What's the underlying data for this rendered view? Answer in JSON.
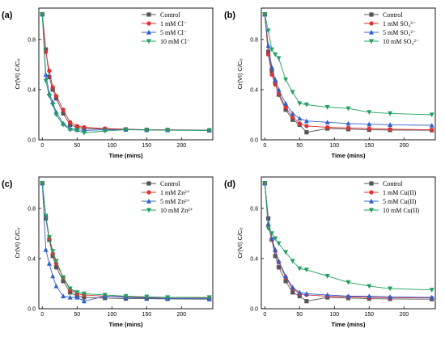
{
  "chart_data": [
    {
      "type": "line",
      "panel_label": "(a)",
      "xlabel": "Time (mins)",
      "ylabel": "Cr(VI) C/C₀",
      "xlim": [
        -5,
        245
      ],
      "ylim": [
        0,
        1.05
      ],
      "xticks": [
        0,
        50,
        100,
        150,
        200
      ],
      "yticks": [
        0.0,
        0.4,
        0.8
      ],
      "legend_position": "top-right",
      "x": [
        0,
        5,
        10,
        15,
        20,
        30,
        40,
        50,
        60,
        90,
        120,
        150,
        180,
        240
      ],
      "series": [
        {
          "name": "Control",
          "color": "#555555",
          "marker": "square",
          "values": [
            1.0,
            0.72,
            0.5,
            0.4,
            0.33,
            0.21,
            0.12,
            0.1,
            0.09,
            0.085,
            0.083,
            0.08,
            0.078,
            0.076
          ]
        },
        {
          "name": "1 mM Cl⁻",
          "color": "#e03030",
          "marker": "circle",
          "values": [
            1.0,
            0.7,
            0.55,
            0.42,
            0.35,
            0.24,
            0.14,
            0.11,
            0.1,
            0.09,
            0.085,
            0.08,
            0.08,
            0.077
          ]
        },
        {
          "name": "5 mM Cl⁻",
          "color": "#3060d0",
          "marker": "triangle-up",
          "values": [
            1.0,
            0.52,
            0.37,
            0.3,
            0.22,
            0.13,
            0.09,
            0.08,
            0.075,
            0.08,
            0.082,
            0.079,
            0.078,
            0.076
          ]
        },
        {
          "name": "10 mM Cl⁻",
          "color": "#20a060",
          "marker": "triangle-down",
          "values": [
            1.0,
            0.47,
            0.35,
            0.28,
            0.2,
            0.12,
            0.08,
            0.075,
            0.055,
            0.07,
            0.08,
            0.078,
            0.076,
            0.075
          ]
        }
      ]
    },
    {
      "type": "line",
      "panel_label": "(b)",
      "xlabel": "Time (mins)",
      "ylabel": "Cr(VI) C/C₀",
      "xlim": [
        -5,
        245
      ],
      "ylim": [
        0,
        1.05
      ],
      "xticks": [
        0,
        50,
        100,
        150,
        200
      ],
      "yticks": [
        0.0,
        0.4,
        0.8
      ],
      "legend_position": "top-right",
      "x": [
        0,
        5,
        10,
        15,
        20,
        30,
        40,
        50,
        60,
        90,
        120,
        150,
        180,
        240
      ],
      "series": [
        {
          "name": "Control",
          "color": "#555555",
          "marker": "square",
          "values": [
            1.0,
            0.7,
            0.55,
            0.45,
            0.36,
            0.24,
            0.16,
            0.12,
            0.06,
            0.09,
            0.085,
            0.08,
            0.078,
            0.076
          ]
        },
        {
          "name": "1 mM SO₄²⁻",
          "color": "#e03030",
          "marker": "circle",
          "values": [
            1.0,
            0.68,
            0.52,
            0.44,
            0.37,
            0.26,
            0.18,
            0.13,
            0.11,
            0.1,
            0.095,
            0.09,
            0.085,
            0.08
          ]
        },
        {
          "name": "5 mM SO₄²⁻",
          "color": "#3060d0",
          "marker": "triangle-up",
          "values": [
            1.0,
            0.75,
            0.58,
            0.48,
            0.4,
            0.29,
            0.21,
            0.17,
            0.15,
            0.14,
            0.13,
            0.125,
            0.12,
            0.115
          ]
        },
        {
          "name": "10 mM SO₄²⁻",
          "color": "#20a060",
          "marker": "triangle-down",
          "values": [
            1.0,
            0.87,
            0.72,
            0.68,
            0.65,
            0.48,
            0.38,
            0.29,
            0.28,
            0.26,
            0.25,
            0.22,
            0.21,
            0.2
          ]
        }
      ]
    },
    {
      "type": "line",
      "panel_label": "(c)",
      "xlabel": "Time (mins)",
      "ylabel": "Cr(VI) C/C₀",
      "xlim": [
        -5,
        245
      ],
      "ylim": [
        0,
        1.05
      ],
      "xticks": [
        0,
        50,
        100,
        150,
        200
      ],
      "yticks": [
        0.0,
        0.4,
        0.8
      ],
      "legend_position": "top-right",
      "x": [
        0,
        5,
        10,
        15,
        20,
        30,
        40,
        50,
        60,
        90,
        120,
        150,
        180,
        240
      ],
      "series": [
        {
          "name": "Control",
          "color": "#555555",
          "marker": "square",
          "values": [
            1.0,
            0.72,
            0.55,
            0.42,
            0.33,
            0.22,
            0.13,
            0.1,
            0.09,
            0.085,
            0.08,
            0.08,
            0.078,
            0.076
          ]
        },
        {
          "name": "1 mM Zn²⁺",
          "color": "#e03030",
          "marker": "circle",
          "values": [
            1.0,
            0.74,
            0.56,
            0.44,
            0.36,
            0.25,
            0.15,
            0.12,
            0.11,
            0.1,
            0.095,
            0.09,
            0.088,
            0.086
          ]
        },
        {
          "name": "5 mM Zn²⁺",
          "color": "#3060d0",
          "marker": "triangle-up",
          "values": [
            1.0,
            0.47,
            0.36,
            0.26,
            0.18,
            0.1,
            0.09,
            0.09,
            0.06,
            0.1,
            0.09,
            0.085,
            0.082,
            0.08
          ]
        },
        {
          "name": "10 mM Zn²⁺",
          "color": "#20a060",
          "marker": "triangle-down",
          "values": [
            1.0,
            0.74,
            0.57,
            0.46,
            0.38,
            0.25,
            0.16,
            0.13,
            0.12,
            0.11,
            0.1,
            0.095,
            0.09,
            0.09
          ]
        }
      ]
    },
    {
      "type": "line",
      "panel_label": "(d)",
      "xlabel": "Time (mins)",
      "ylabel": "Cr(VI) C/C₀",
      "xlim": [
        -5,
        245
      ],
      "ylim": [
        0,
        1.05
      ],
      "xticks": [
        0,
        50,
        100,
        150,
        200
      ],
      "yticks": [
        0.0,
        0.4,
        0.8
      ],
      "legend_position": "top-right",
      "x": [
        0,
        5,
        10,
        15,
        20,
        30,
        40,
        50,
        60,
        90,
        120,
        150,
        180,
        240
      ],
      "series": [
        {
          "name": "Control",
          "color": "#555555",
          "marker": "square",
          "values": [
            1.0,
            0.72,
            0.55,
            0.42,
            0.33,
            0.22,
            0.13,
            0.1,
            0.06,
            0.09,
            0.085,
            0.08,
            0.078,
            0.076
          ]
        },
        {
          "name": "1 mM Cu(II)",
          "color": "#e03030",
          "marker": "circle",
          "values": [
            1.0,
            0.66,
            0.55,
            0.46,
            0.37,
            0.25,
            0.16,
            0.12,
            0.11,
            0.1,
            0.095,
            0.09,
            0.088,
            0.086
          ]
        },
        {
          "name": "5 mM Cu(II)",
          "color": "#3060d0",
          "marker": "triangle-up",
          "values": [
            1.0,
            0.68,
            0.56,
            0.47,
            0.38,
            0.26,
            0.17,
            0.13,
            0.12,
            0.11,
            0.1,
            0.1,
            0.095,
            0.09
          ]
        },
        {
          "name": "10 mM Cu(II)",
          "color": "#20a060",
          "marker": "triangle-down",
          "values": [
            1.0,
            0.64,
            0.6,
            0.56,
            0.52,
            0.45,
            0.38,
            0.32,
            0.31,
            0.26,
            0.21,
            0.18,
            0.16,
            0.15
          ]
        }
      ]
    }
  ]
}
